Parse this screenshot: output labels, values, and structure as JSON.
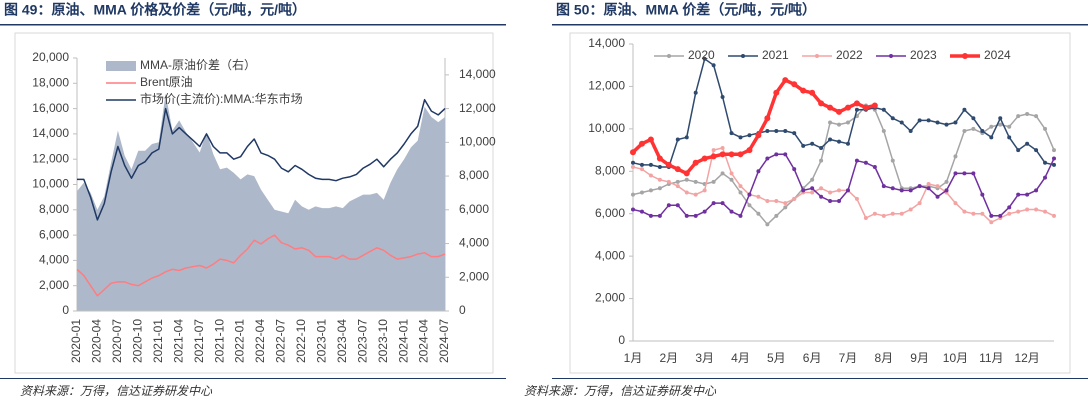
{
  "chart_data": [
    {
      "type": "line",
      "title": "图 49：原油、MMA 价格及价差（元/吨，元/吨）",
      "source": "资料来源：万得，信达证券研发中心",
      "categories": [
        "2020-01",
        null,
        null,
        "2020-04",
        null,
        null,
        "2020-07",
        null,
        null,
        "2020-10",
        null,
        null,
        "2021-01",
        null,
        null,
        "2021-04",
        null,
        null,
        "2021-07",
        null,
        null,
        "2021-10",
        null,
        null,
        "2022-01",
        null,
        null,
        "2022-04",
        null,
        null,
        "2022-07",
        null,
        null,
        "2022-10",
        null,
        null,
        "2023-01",
        null,
        null,
        "2023-04",
        null,
        null,
        "2023-07",
        null,
        null,
        "2023-10",
        null,
        null,
        "2024-01",
        null,
        null,
        "2024-04",
        null,
        null,
        "2024-07"
      ],
      "ylim": [
        0,
        20000
      ],
      "yticks": [
        0,
        {
          "value": 2000,
          "label": "2,000"
        },
        {
          "value": 4000,
          "label": "4,000"
        },
        {
          "value": 6000,
          "label": "6,000"
        },
        {
          "value": 8000,
          "label": "8,000"
        },
        {
          "value": 10000,
          "label": "10,000"
        },
        {
          "value": 12000,
          "label": "12,000"
        },
        {
          "value": 14000,
          "label": "14,000"
        },
        {
          "value": 16000,
          "label": "16,000"
        },
        {
          "value": 18000,
          "label": "18,000"
        },
        {
          "value": 20000,
          "label": "20,000"
        }
      ],
      "y2lim": [
        0,
        15000
      ],
      "y2ticks": [
        0,
        {
          "value": 2000,
          "label": "2,000"
        },
        {
          "value": 4000,
          "label": "4,000"
        },
        {
          "value": 6000,
          "label": "6,000"
        },
        {
          "value": 8000,
          "label": "8,000"
        },
        {
          "value": 10000,
          "label": "10,000"
        },
        {
          "value": 12000,
          "label": "12,000"
        },
        {
          "value": 14000,
          "label": "14,000"
        }
      ],
      "series": [
        {
          "name": "MMA-原油价差（右）",
          "type": "area",
          "axis": "y2",
          "color": "#adb9ca",
          "values": [
            7100,
            7600,
            7000,
            6000,
            6800,
            8800,
            10700,
            9200,
            8400,
            9500,
            9500,
            9900,
            10000,
            12900,
            10700,
            11300,
            10600,
            10000,
            9400,
            10600,
            9300,
            8400,
            8500,
            8200,
            7800,
            8100,
            8000,
            7200,
            6600,
            6000,
            5900,
            5800,
            6600,
            6200,
            6000,
            6200,
            6100,
            6100,
            6200,
            6100,
            6500,
            6700,
            6900,
            6900,
            7000,
            6600,
            7600,
            8400,
            9000,
            9700,
            10100,
            12100,
            11500,
            11200,
            11500
          ]
        },
        {
          "name": "Brent原油",
          "color": "#ff7c80",
          "values": [
            3300,
            2800,
            2000,
            1200,
            1700,
            2200,
            2300,
            2300,
            2100,
            2000,
            2300,
            2600,
            2800,
            3100,
            3300,
            3200,
            3400,
            3500,
            3600,
            3400,
            3700,
            4100,
            4000,
            3800,
            4400,
            4900,
            5600,
            5300,
            5700,
            6000,
            5400,
            5200,
            4900,
            5000,
            4800,
            4300,
            4300,
            4300,
            4100,
            4400,
            4100,
            4100,
            4400,
            4700,
            5000,
            4800,
            4400,
            4100,
            4200,
            4300,
            4500,
            4600,
            4300,
            4300,
            4500
          ]
        },
        {
          "name": "市场价(主流价):MMA:华东市场",
          "color": "#203864",
          "values": [
            10400,
            10400,
            9000,
            7200,
            8500,
            11000,
            13000,
            11500,
            10500,
            11500,
            11800,
            12500,
            12800,
            16000,
            14000,
            14500,
            14000,
            13500,
            13000,
            14000,
            13000,
            12500,
            12500,
            12000,
            12200,
            13000,
            13600,
            12500,
            12300,
            12000,
            11300,
            11000,
            11500,
            11200,
            10800,
            10500,
            10400,
            10400,
            10300,
            10500,
            10600,
            10800,
            11300,
            11600,
            12000,
            11400,
            12000,
            12500,
            13200,
            14000,
            14600,
            16700,
            15800,
            15500,
            16000
          ]
        }
      ]
    },
    {
      "type": "line",
      "title": "图 50：原油、MMA 价差（元/吨，元/吨）",
      "source": "资料来源：万得，信达证券研发中心",
      "markers": true,
      "categories": [
        "1月",
        null,
        null,
        null,
        "2月",
        null,
        null,
        null,
        "3月",
        null,
        null,
        null,
        "4月",
        null,
        null,
        null,
        "5月",
        null,
        null,
        null,
        "6月",
        null,
        null,
        null,
        "7月",
        null,
        null,
        null,
        "8月",
        null,
        null,
        null,
        "9月",
        null,
        null,
        null,
        "10月",
        null,
        null,
        null,
        "11月",
        null,
        null,
        null,
        "12月",
        null,
        null,
        null
      ],
      "ylim": [
        0,
        14000
      ],
      "yticks": [
        0,
        {
          "value": 2000,
          "label": "2,000"
        },
        {
          "value": 4000,
          "label": "4,000"
        },
        {
          "value": 6000,
          "label": "6,000"
        },
        {
          "value": 8000,
          "label": "8,000"
        },
        {
          "value": 10000,
          "label": "10,000"
        },
        {
          "value": 12000,
          "label": "12,000"
        },
        {
          "value": 14000,
          "label": "14,000"
        }
      ],
      "series": [
        {
          "name": "2020",
          "color": "#a5a5a5",
          "values": [
            6900,
            7000,
            7100,
            7200,
            7400,
            7500,
            7600,
            7500,
            7400,
            7500,
            7900,
            7600,
            7000,
            6400,
            6000,
            5500,
            5900,
            6300,
            6700,
            7200,
            7600,
            8500,
            10300,
            10200,
            10300,
            10600,
            11100,
            10900,
            9900,
            8500,
            7200,
            7200,
            7300,
            7300,
            7200,
            7500,
            8700,
            9900,
            10000,
            9800,
            10100,
            10200,
            10100,
            10600,
            10700,
            10600,
            10000,
            9000
          ]
        },
        {
          "name": "2021",
          "color": "#2f4a6e",
          "values": [
            8400,
            8300,
            8300,
            8200,
            8200,
            9500,
            9600,
            11700,
            13300,
            13000,
            11500,
            9800,
            9600,
            9700,
            9800,
            9900,
            9900,
            9900,
            9800,
            9200,
            9300,
            9100,
            9500,
            9400,
            9300,
            10900,
            10900,
            11000,
            10900,
            10500,
            10300,
            9900,
            10400,
            10400,
            10300,
            10200,
            10300,
            10900,
            10500,
            9900,
            9600,
            10500,
            9600,
            9000,
            9300,
            9000,
            8400,
            8300
          ]
        },
        {
          "name": "2022",
          "color": "#f4a3a3",
          "values": [
            8200,
            8100,
            7800,
            7600,
            7500,
            7300,
            7000,
            6900,
            7100,
            9000,
            9100,
            7900,
            7300,
            6900,
            6800,
            6600,
            6600,
            6500,
            6700,
            7000,
            7000,
            7200,
            7000,
            7100,
            7100,
            6700,
            5800,
            6000,
            5900,
            6000,
            6000,
            6200,
            6500,
            7400,
            7300,
            7000,
            6500,
            6100,
            6000,
            6000,
            5600,
            5800,
            6000,
            6100,
            6200,
            6200,
            6100,
            5900
          ]
        },
        {
          "name": "2023",
          "color": "#7030a0",
          "values": [
            6200,
            6100,
            5900,
            5900,
            6400,
            6400,
            5900,
            5900,
            6100,
            6500,
            6500,
            6100,
            5900,
            6900,
            8000,
            8600,
            8800,
            8800,
            8100,
            7100,
            7200,
            6800,
            6600,
            6600,
            7100,
            8500,
            8400,
            8200,
            7300,
            7200,
            7100,
            7100,
            7300,
            7200,
            6800,
            7100,
            7900,
            7900,
            7900,
            6900,
            5900,
            5900,
            6300,
            6900,
            6900,
            7100,
            7700,
            8600
          ]
        },
        {
          "name": "2024",
          "color": "#ff3333",
          "width": 3.5,
          "values": [
            8900,
            9300,
            9500,
            8600,
            8300,
            8100,
            7900,
            8400,
            8600,
            8700,
            8800,
            8800,
            8800,
            9000,
            9700,
            10500,
            11700,
            12300,
            12100,
            11800,
            11700,
            11200,
            11000,
            10800,
            11000,
            11200,
            11000,
            11100,
            null,
            null,
            null,
            null,
            null,
            null,
            null,
            null,
            null,
            null,
            null,
            null,
            null,
            null,
            null,
            null,
            null,
            null,
            null,
            null
          ]
        }
      ]
    }
  ]
}
